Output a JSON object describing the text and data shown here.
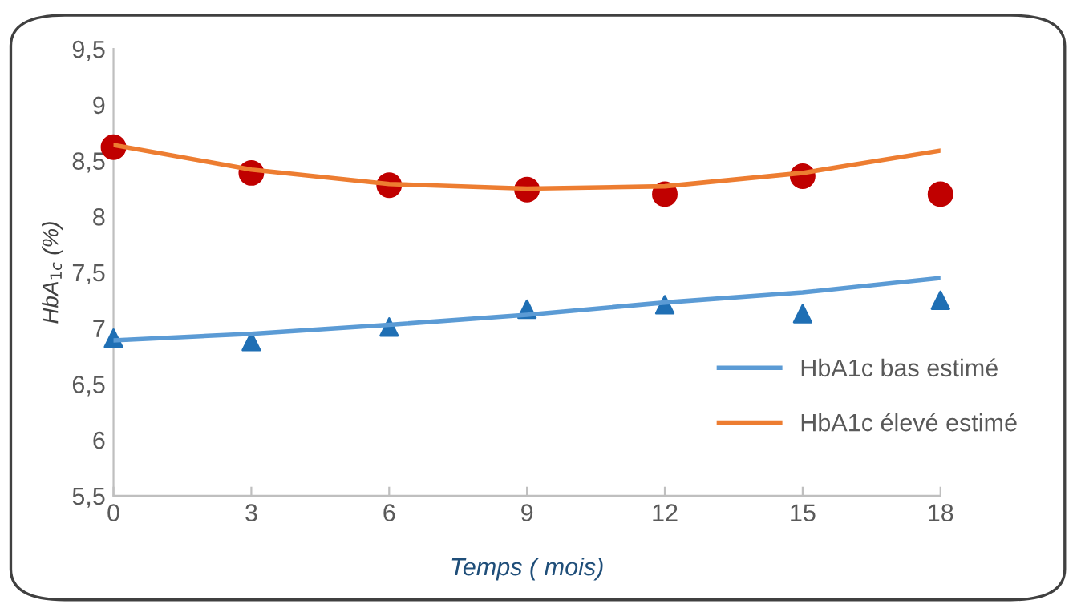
{
  "chart_data": {
    "type": "line",
    "xlabel": "Temps ( mois)",
    "ylabel": "HbA$_{1c}$ (%)",
    "x": [
      0,
      3,
      6,
      9,
      12,
      15,
      18
    ],
    "series": [
      {
        "name": "HbA1c bas estimé",
        "color": "#5b9bd5",
        "values": [
          6.89,
          6.95,
          7.03,
          7.12,
          7.23,
          7.32,
          7.45
        ]
      },
      {
        "name": "HbA1c élevé estimé",
        "color": "#ed7d31",
        "values": [
          8.64,
          8.42,
          8.29,
          8.25,
          8.27,
          8.39,
          8.59
        ]
      },
      {
        "type": "scatter",
        "marker": "triangle",
        "color": "#1f6fb4",
        "values": [
          6.91,
          6.88,
          7.01,
          7.17,
          7.21,
          7.13,
          7.25
        ]
      },
      {
        "type": "scatter",
        "marker": "circle",
        "color": "#c00000",
        "values": [
          8.62,
          8.39,
          8.28,
          8.24,
          8.2,
          8.36,
          8.2
        ]
      }
    ],
    "xlim": [
      0,
      18
    ],
    "xticks": [
      0,
      3,
      6,
      9,
      12,
      15,
      18
    ],
    "ylim": [
      5.5,
      9.5
    ],
    "yticks": [
      {
        "value": 5.5,
        "label": "5,5"
      },
      6,
      {
        "value": 6.5,
        "label": "6,5"
      },
      7,
      {
        "value": 7.5,
        "label": "7,5"
      },
      8,
      {
        "value": 8.5,
        "label": "8,5"
      },
      9,
      {
        "value": 9.5,
        "label": "9,5"
      }
    ],
    "legend": "right",
    "grid": false
  }
}
